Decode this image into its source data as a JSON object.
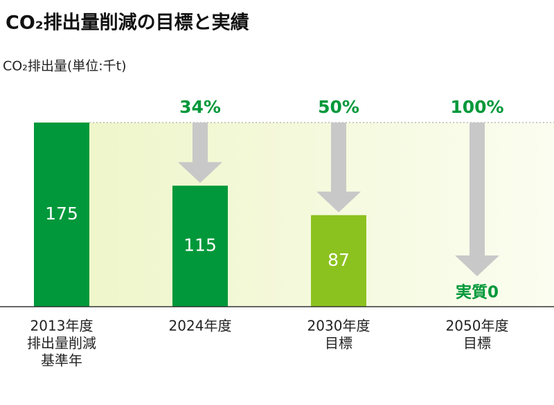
{
  "chart_data": {
    "type": "bar",
    "title": "CO₂排出量削減の目標と実績",
    "ylabel": "CO₂排出量(単位:千t)",
    "categories": [
      [
        "2013年度",
        "排出量削減",
        "基準年"
      ],
      [
        "2024年度"
      ],
      [
        "2030年度",
        "目標"
      ],
      [
        "2050年度",
        "目標"
      ]
    ],
    "values": [
      175,
      115,
      87,
      0
    ],
    "value_labels": [
      "175",
      "115",
      "87",
      "実質0"
    ],
    "colors": [
      "#00983a",
      "#00983a",
      "#8cc21f",
      "#00983a"
    ],
    "reduction_values": [
      null,
      34,
      50,
      100
    ],
    "reduction_labels": [
      null,
      "34%",
      "50%",
      "100%"
    ],
    "ylim": [
      0,
      175
    ]
  }
}
